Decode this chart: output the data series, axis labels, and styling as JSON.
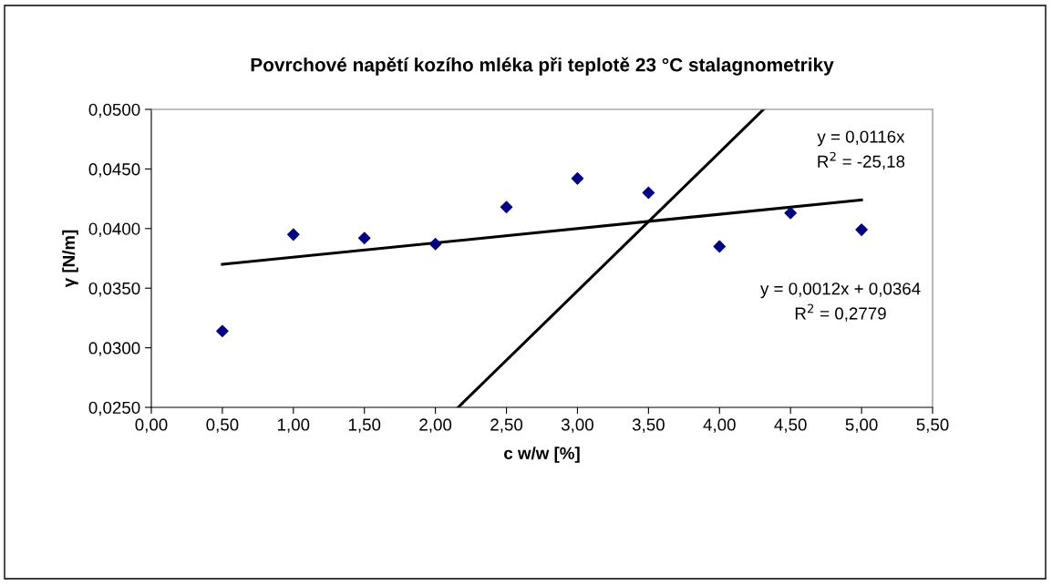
{
  "chart_data": {
    "type": "scatter",
    "title": "Povrchové napětí kozího mléka při teplotě 23 °C stalagnometriky",
    "xlabel": "c w/w [%]",
    "ylabel": "γ [N/m]",
    "series": [
      {
        "color": "#000080",
        "marker": "diamond",
        "x": [
          0.5,
          1.0,
          1.5,
          2.0,
          2.5,
          3.0,
          3.5,
          4.0,
          4.5,
          5.0
        ],
        "values": [
          0.0314,
          0.0395,
          0.0392,
          0.0387,
          0.0418,
          0.0442,
          0.043,
          0.0385,
          0.0413,
          0.0399
        ]
      },
      {
        "type": "line",
        "color": "#000000",
        "marker": "none",
        "line_style": "solid",
        "x": [
          2.16,
          4.31
        ],
        "values": [
          0.025,
          0.05
        ]
      },
      {
        "type": "line",
        "color": "#000000",
        "marker": "none",
        "line_style": "solid",
        "x": [
          0.5,
          5.0
        ],
        "values": [
          0.037,
          0.0424
        ]
      }
    ],
    "annotations": [
      "y = 0,0116x\nR$^{2}$ = -25,18",
      "y = 0,0012x + 0,0364\nR$^{2}$ = 0,2779"
    ],
    "xlim": [
      0,
      5.5
    ],
    "ylim": [
      0.025,
      0.05
    ],
    "xticks": [
      {
        "value": 0,
        "label": "0,00"
      },
      {
        "value": 0.5,
        "label": "0,50"
      },
      {
        "value": 1,
        "label": "1,00"
      },
      {
        "value": 1.5,
        "label": "1,50"
      },
      {
        "value": 2,
        "label": "2,00"
      },
      {
        "value": 2.5,
        "label": "2,50"
      },
      {
        "value": 3,
        "label": "3,00"
      },
      {
        "value": 3.5,
        "label": "3,50"
      },
      {
        "value": 4,
        "label": "4,00"
      },
      {
        "value": 4.5,
        "label": "4,50"
      },
      {
        "value": 5,
        "label": "5,00"
      },
      {
        "value": 5.5,
        "label": "5,50"
      }
    ],
    "yticks": [
      {
        "value": 0.025,
        "label": "0,0250"
      },
      {
        "value": 0.03,
        "label": "0,0300"
      },
      {
        "value": 0.035,
        "label": "0,0350"
      },
      {
        "value": 0.04,
        "label": "0,0400"
      },
      {
        "value": 0.045,
        "label": "0,0450"
      },
      {
        "value": 0.05,
        "label": "0,0500"
      }
    ],
    "grid": false,
    "legend": false
  }
}
